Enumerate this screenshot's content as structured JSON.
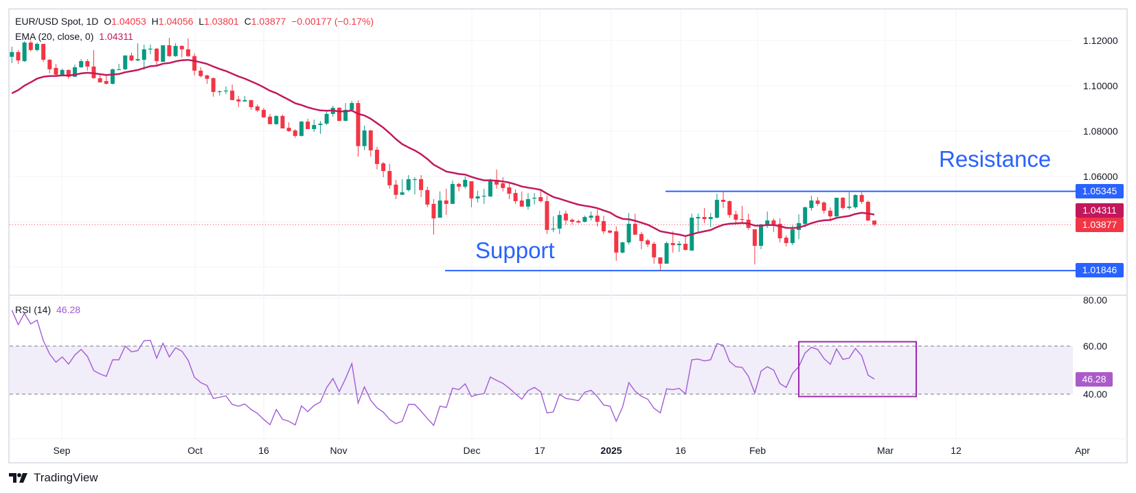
{
  "header": {
    "symbol": "EUR/USD Spot, 1D",
    "open_label": "O",
    "open": "1.04053",
    "high_label": "H",
    "high": "1.04056",
    "low_label": "L",
    "low": "1.03801",
    "close_label": "C",
    "close": "1.03877",
    "change": "−0.00177 (−0.17%)"
  },
  "ema_legend": {
    "label": "EMA (20, close, 0)",
    "value": "1.04311"
  },
  "rsi_legend": {
    "label": "RSI (14)",
    "value": "46.28"
  },
  "price_axis": [
    "1.12000",
    "1.10000",
    "1.08000",
    "1.06000"
  ],
  "rsi_axis": [
    "80.00",
    "60.00",
    "40.00"
  ],
  "time_axis": [
    "Sep",
    "Oct",
    "16",
    "Nov",
    "Dec",
    "17",
    "2025",
    "16",
    "Feb",
    "Mar",
    "12",
    "Apr"
  ],
  "tags": {
    "resistance": "1.05345",
    "ema": "1.04311",
    "last": "1.03877",
    "support": "1.01846",
    "rsi": "46.28"
  },
  "annotations": {
    "resistance": "Resistance",
    "support": "Support"
  },
  "branding": "TradingView",
  "colors": {
    "up": "#089981",
    "down": "#f23645",
    "ema": "#c2185b",
    "rsi": "#a05bd5",
    "lines": "#2962ff",
    "rsi_box": "#9c27b0"
  },
  "chart_data": [
    {
      "type": "candlestick",
      "title": "EUR/USD Spot, 1D",
      "ylim": [
        1.005,
        1.13
      ],
      "grid": true,
      "levels": {
        "resistance": 1.05345,
        "support": 1.01846,
        "last_close": 1.03877
      },
      "ema": {
        "period": 20,
        "first_value": 1.0967,
        "last_value": 1.04311
      },
      "ohlc": [
        [
          1.1128,
          1.1173,
          1.11,
          1.1149
        ],
        [
          1.1149,
          1.1158,
          1.1097,
          1.1112
        ],
        [
          1.1109,
          1.1197,
          1.1106,
          1.1191
        ],
        [
          1.1191,
          1.12,
          1.1152,
          1.1158
        ],
        [
          1.1158,
          1.1191,
          1.1152,
          1.1185
        ],
        [
          1.1185,
          1.1185,
          1.1106,
          1.1115
        ],
        [
          1.1115,
          1.1118,
          1.1055,
          1.1073
        ],
        [
          1.1079,
          1.1097,
          1.1043,
          1.1049
        ],
        [
          1.1049,
          1.1076,
          1.1043,
          1.107
        ],
        [
          1.107,
          1.1073,
          1.1031,
          1.104
        ],
        [
          1.104,
          1.1094,
          1.104,
          1.1082
        ],
        [
          1.1082,
          1.1118,
          1.1079,
          1.1109
        ],
        [
          1.1109,
          1.1118,
          1.1067,
          1.1085
        ],
        [
          1.1085,
          1.1158,
          1.1031,
          1.1034
        ],
        [
          1.1034,
          1.1049,
          1.1015,
          1.1015
        ],
        [
          1.1021,
          1.1052,
          1.1006,
          1.1009
        ],
        [
          1.1009,
          1.1076,
          1.1006,
          1.1073
        ],
        [
          1.107,
          1.1097,
          1.107,
          1.1073
        ],
        [
          1.1073,
          1.1134,
          1.107,
          1.1134
        ],
        [
          1.1134,
          1.1146,
          1.1109,
          1.1112
        ],
        [
          1.1112,
          1.1188,
          1.1109,
          1.1118
        ],
        [
          1.1115,
          1.1182,
          1.107,
          1.1161
        ],
        [
          1.1161,
          1.1182,
          1.114,
          1.1164
        ],
        [
          1.1164,
          1.1167,
          1.1085,
          1.1109
        ],
        [
          1.1106,
          1.1179,
          1.1106,
          1.1179
        ],
        [
          1.1179,
          1.1212,
          1.1128,
          1.1131
        ],
        [
          1.1131,
          1.1188,
          1.1128,
          1.1176
        ],
        [
          1.1176,
          1.1179,
          1.1125,
          1.1161
        ],
        [
          1.1161,
          1.1209,
          1.1128,
          1.1131
        ],
        [
          1.1131,
          1.1143,
          1.1046,
          1.1067
        ],
        [
          1.1067,
          1.1082,
          1.1037,
          1.1043
        ],
        [
          1.1046,
          1.1049,
          1.1009,
          1.1031
        ],
        [
          1.1034,
          1.1037,
          1.0952,
          1.0973
        ],
        [
          1.0973,
          1.0979,
          1.0958,
          1.0976
        ],
        [
          1.0976,
          1.0997,
          1.0964,
          1.0979
        ],
        [
          1.0979,
          1.1006,
          1.0937,
          1.0937
        ],
        [
          1.094,
          1.0955,
          1.0906,
          1.0931
        ],
        [
          1.0931,
          1.0955,
          1.0931,
          1.0937
        ],
        [
          1.0937,
          1.0937,
          1.0894,
          1.0906
        ],
        [
          1.0909,
          1.0918,
          1.0885,
          1.0891
        ],
        [
          1.0894,
          1.0903,
          1.0858,
          1.0861
        ],
        [
          1.0864,
          1.0876,
          1.083,
          1.0831
        ],
        [
          1.0831,
          1.087,
          1.0827,
          1.0867
        ],
        [
          1.0867,
          1.0873,
          1.0812,
          1.0812
        ],
        [
          1.0815,
          1.0839,
          1.0797,
          1.08
        ],
        [
          1.0803,
          1.0809,
          1.077,
          1.0779
        ],
        [
          1.0779,
          1.0845,
          1.0776,
          1.0842
        ],
        [
          1.0842,
          1.0855,
          1.0809,
          1.0809
        ],
        [
          1.0809,
          1.0851,
          1.0797,
          1.0827
        ],
        [
          1.0827,
          1.0845,
          1.0788,
          1.0833
        ],
        [
          1.0833,
          1.0888,
          1.0827,
          1.0876
        ],
        [
          1.0876,
          1.0912,
          1.0864,
          1.0903
        ],
        [
          1.0903,
          1.0906,
          1.0845,
          1.0845
        ],
        [
          1.0845,
          1.0924,
          1.0845,
          1.0894
        ],
        [
          1.0894,
          1.0933,
          1.0891,
          1.0924
        ],
        [
          1.0924,
          1.0936,
          1.0688,
          1.0734
        ],
        [
          1.0734,
          1.0824,
          1.0716,
          1.0803
        ],
        [
          1.0803,
          1.0806,
          1.0688,
          1.0715
        ],
        [
          1.0718,
          1.0731,
          1.0631,
          1.0655
        ],
        [
          1.0658,
          1.0664,
          1.0597,
          1.0624
        ],
        [
          1.0624,
          1.0655,
          1.0546,
          1.0561
        ],
        [
          1.0564,
          1.0585,
          1.05,
          1.0519
        ],
        [
          1.0519,
          1.0588,
          1.0519,
          1.053
        ],
        [
          1.054,
          1.0606,
          1.0534,
          1.0588
        ],
        [
          1.0585,
          1.0597,
          1.0521,
          1.0588
        ],
        [
          1.0588,
          1.0606,
          1.0509,
          1.054
        ],
        [
          1.054,
          1.0555,
          1.0464,
          1.0476
        ],
        [
          1.0479,
          1.05,
          1.0343,
          1.0415
        ],
        [
          1.0418,
          1.0534,
          1.0418,
          1.0494
        ],
        [
          1.0494,
          1.0546,
          1.043,
          1.0479
        ],
        [
          1.0479,
          1.0582,
          1.0479,
          1.0567
        ],
        [
          1.0567,
          1.0573,
          1.0534,
          1.0555
        ],
        [
          1.0555,
          1.06,
          1.0546,
          1.0585
        ],
        [
          1.0579,
          1.0579,
          1.0464,
          1.0503
        ],
        [
          1.0503,
          1.0537,
          1.0485,
          1.0512
        ],
        [
          1.0512,
          1.0546,
          1.0479,
          1.0515
        ],
        [
          1.0512,
          1.0591,
          1.0509,
          1.0585
        ],
        [
          1.0585,
          1.0631,
          1.0546,
          1.0564
        ],
        [
          1.057,
          1.0597,
          1.0534,
          1.0549
        ],
        [
          1.0552,
          1.057,
          1.05,
          1.0524
        ],
        [
          1.0527,
          1.0543,
          1.0479,
          1.0491
        ],
        [
          1.0494,
          1.0534,
          1.0467,
          1.0467
        ],
        [
          1.0467,
          1.0527,
          1.0454,
          1.05
        ],
        [
          1.0503,
          1.0527,
          1.0476,
          1.0506
        ],
        [
          1.0509,
          1.054,
          1.0485,
          1.0491
        ],
        [
          1.0491,
          1.0515,
          1.0346,
          1.0364
        ],
        [
          1.0367,
          1.0424,
          1.0355,
          1.037
        ],
        [
          1.037,
          1.0449,
          1.0346,
          1.043
        ],
        [
          1.0436,
          1.0449,
          1.0388,
          1.0406
        ],
        [
          1.0409,
          1.0415,
          1.0388,
          1.04
        ],
        [
          1.0403,
          1.0409,
          1.0394,
          1.0397
        ],
        [
          1.04,
          1.0427,
          1.0397,
          1.0421
        ],
        [
          1.0418,
          1.0445,
          1.0406,
          1.0427
        ],
        [
          1.0427,
          1.0454,
          1.0379,
          1.04
        ],
        [
          1.0403,
          1.0427,
          1.0346,
          1.0358
        ],
        [
          1.0361,
          1.0364,
          1.0349,
          1.0352
        ],
        [
          1.0358,
          1.0379,
          1.0228,
          1.0264
        ],
        [
          1.0264,
          1.0312,
          1.0261,
          1.0309
        ],
        [
          1.0309,
          1.0439,
          1.03,
          1.0391
        ],
        [
          1.0391,
          1.0436,
          1.0343,
          1.0343
        ],
        [
          1.0346,
          1.0355,
          1.0279,
          1.0315
        ],
        [
          1.0318,
          1.0324,
          1.0288,
          1.03
        ],
        [
          1.0303,
          1.0312,
          1.0215,
          1.0243
        ],
        [
          1.0243,
          1.0243,
          1.0185,
          1.0215
        ],
        [
          1.0215,
          1.0312,
          1.0215,
          1.0306
        ],
        [
          1.0306,
          1.0358,
          1.0264,
          1.0297
        ],
        [
          1.0297,
          1.0315,
          1.0267,
          1.0303
        ],
        [
          1.0303,
          1.0333,
          1.0273,
          1.0276
        ],
        [
          1.0273,
          1.0436,
          1.0273,
          1.0418
        ],
        [
          1.0415,
          1.0436,
          1.0352,
          1.0421
        ],
        [
          1.0421,
          1.0461,
          1.0394,
          1.0412
        ],
        [
          1.0412,
          1.0439,
          1.0376,
          1.0421
        ],
        [
          1.0418,
          1.0524,
          1.0415,
          1.0497
        ],
        [
          1.0497,
          1.0537,
          1.0461,
          1.0488
        ],
        [
          1.0491,
          1.0494,
          1.0418,
          1.043
        ],
        [
          1.0433,
          1.0449,
          1.0388,
          1.0409
        ],
        [
          1.0412,
          1.047,
          1.0391,
          1.0409
        ],
        [
          1.0409,
          1.0436,
          1.0364,
          1.0373
        ],
        [
          1.0367,
          1.0367,
          1.0212,
          1.0294
        ],
        [
          1.0294,
          1.0391,
          1.0279,
          1.0388
        ],
        [
          1.0388,
          1.0445,
          1.0373,
          1.0406
        ],
        [
          1.0406,
          1.0415,
          1.0355,
          1.0388
        ],
        [
          1.0391,
          1.0415,
          1.0309,
          1.0327
        ],
        [
          1.033,
          1.034,
          1.0291,
          1.0306
        ],
        [
          1.0306,
          1.0385,
          1.0297,
          1.0367
        ],
        [
          1.0364,
          1.0433,
          1.0324,
          1.0394
        ],
        [
          1.0391,
          1.0467,
          1.0376,
          1.0464
        ],
        [
          1.0461,
          1.0515,
          1.0449,
          1.0494
        ],
        [
          1.0494,
          1.0509,
          1.047,
          1.0479
        ],
        [
          1.0485,
          1.0491,
          1.0436,
          1.0449
        ],
        [
          1.0449,
          1.0464,
          1.0403,
          1.0424
        ],
        [
          1.0424,
          1.0506,
          1.0421,
          1.0506
        ],
        [
          1.0506,
          1.0509,
          1.0454,
          1.0461
        ],
        [
          1.0461,
          1.053,
          1.0454,
          1.0467
        ],
        [
          1.0464,
          1.0521,
          1.0458,
          1.0518
        ],
        [
          1.0518,
          1.053,
          1.0479,
          1.0488
        ],
        [
          1.0488,
          1.0494,
          1.0403,
          1.0406
        ],
        [
          1.04053,
          1.04056,
          1.03801,
          1.03877
        ]
      ]
    },
    {
      "type": "line",
      "title": "RSI (14)",
      "ylim": [
        20,
        85
      ],
      "bands": [
        40,
        60
      ],
      "highlight_box": [
        39,
        61.8
      ],
      "values": [
        74.95,
        68.9,
        73.6,
        69.2,
        70.8,
        62.2,
        56.7,
        53.3,
        55.5,
        52.5,
        56.3,
        58.6,
        55.7,
        49.8,
        48.4,
        47.4,
        54.3,
        54.3,
        60.0,
        57.6,
        58.1,
        62.2,
        62.4,
        55.0,
        61.2,
        55.5,
        59.3,
        57.9,
        54.1,
        47.0,
        44.8,
        43.6,
        38.2,
        38.7,
        39.3,
        35.7,
        35.0,
        35.9,
        33.6,
        32.0,
        29.5,
        27.3,
        33.6,
        29.5,
        28.7,
        27.2,
        35.1,
        32.7,
        35.3,
        36.7,
        42.7,
        46.5,
        41.0,
        46.5,
        52.7,
        36.3,
        43.0,
        37.4,
        34.3,
        32.5,
        29.5,
        27.7,
        28.7,
        35.7,
        35.7,
        32.9,
        29.8,
        27.0,
        35.0,
        34.4,
        42.5,
        41.9,
        44.3,
        39.0,
        39.8,
        40.2,
        47.1,
        45.7,
        44.5,
        42.5,
        40.1,
        37.9,
        41.5,
        42.8,
        41.0,
        32.2,
        32.6,
        39.9,
        38.2,
        37.8,
        37.3,
        40.8,
        41.6,
        39.0,
        35.5,
        35.0,
        28.7,
        34.6,
        44.8,
        41.2,
        39.1,
        37.9,
        34.1,
        32.2,
        42.2,
        41.9,
        42.4,
        40.1,
        54.3,
        54.6,
        53.8,
        54.3,
        61.0,
        60.3,
        53.6,
        51.4,
        51.1,
        47.4,
        40.5,
        49.6,
        51.4,
        50.0,
        44.4,
        42.8,
        48.6,
        51.4,
        57.1,
        59.5,
        58.6,
        54.8,
        52.4,
        58.8,
        54.5,
        55.0,
        59.0,
        55.9,
        47.9,
        46.28
      ]
    }
  ]
}
